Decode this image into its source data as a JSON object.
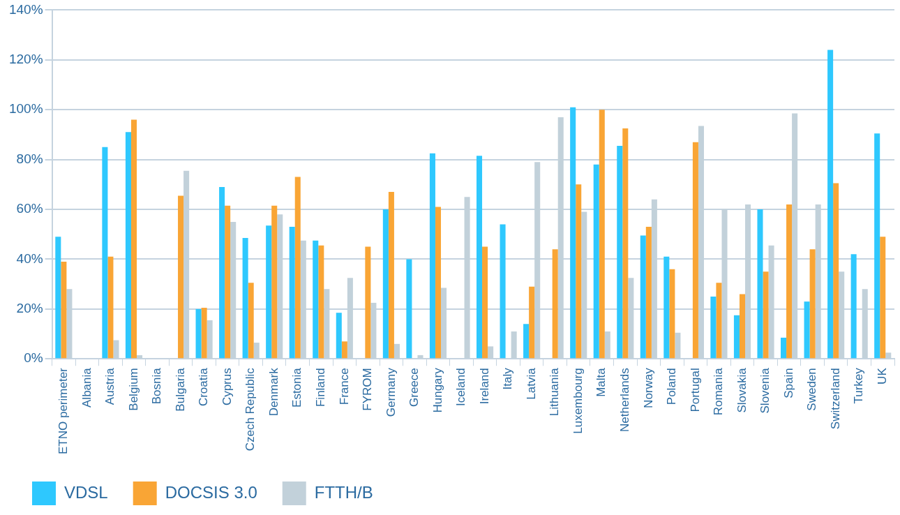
{
  "chart_data": {
    "type": "bar",
    "categories": [
      "ETNO perimeter",
      "Albania",
      "Austria",
      "Belgium",
      "Bosnia",
      "Bulgaria",
      "Croatia",
      "Cyprus",
      "Czech Republic",
      "Denmark",
      "Estonia",
      "Finland",
      "France",
      "FYROM",
      "Germany",
      "Greece",
      "Hungary",
      "Iceland",
      "Ireland",
      "Italy",
      "Latvia",
      "Lithuania",
      "Luxembourg",
      "Malta",
      "Netherlands",
      "Norway",
      "Poland",
      "Portugal",
      "Romania",
      "Slovakia",
      "Slovenia",
      "Spain",
      "Sweden",
      "Switzerland",
      "Turkey",
      "UK"
    ],
    "series": [
      {
        "name": "VDSL",
        "color": "#2ec8fe",
        "values": [
          49,
          null,
          85,
          91,
          null,
          null,
          20,
          69,
          48.5,
          53.5,
          53,
          47.5,
          18.5,
          null,
          60,
          40,
          82.5,
          null,
          81.5,
          54,
          14,
          null,
          101,
          78,
          85.5,
          49.5,
          41,
          null,
          25,
          17.5,
          60,
          8.5,
          23,
          124,
          42,
          90.5
        ]
      },
      {
        "name": "DOCSIS 3.0",
        "color": "#f9a535",
        "values": [
          39,
          null,
          41,
          96,
          null,
          65.5,
          20.5,
          61.5,
          30.5,
          61.5,
          73,
          45.5,
          7,
          45,
          67,
          null,
          61,
          null,
          45,
          null,
          29,
          44,
          70,
          100,
          92.5,
          53,
          36,
          87,
          30.5,
          26,
          35,
          62,
          44,
          70.5,
          null,
          49
        ]
      },
      {
        "name": "FTTH/B",
        "color": "#c2d1da",
        "values": [
          28,
          null,
          7.5,
          1.5,
          null,
          75.5,
          15.5,
          55,
          6.5,
          58,
          47.5,
          28,
          32.5,
          22.5,
          6,
          1.5,
          28.5,
          65,
          5,
          11,
          79,
          97,
          59,
          11,
          32.5,
          64,
          10.5,
          93.5,
          60,
          62,
          45.5,
          98.5,
          62,
          35,
          28,
          2.5
        ]
      }
    ],
    "ylim": [
      0,
      140
    ],
    "yticks": [
      {
        "value": 0,
        "label": "0%"
      },
      {
        "value": 20,
        "label": "20%"
      },
      {
        "value": 40,
        "label": "40%"
      },
      {
        "value": 60,
        "label": "60%"
      },
      {
        "value": 80,
        "label": "80%"
      },
      {
        "value": 100,
        "label": "100%"
      },
      {
        "value": 120,
        "label": "120%"
      },
      {
        "value": 140,
        "label": "140%"
      }
    ],
    "grid": "y",
    "legend": "bottom left"
  }
}
